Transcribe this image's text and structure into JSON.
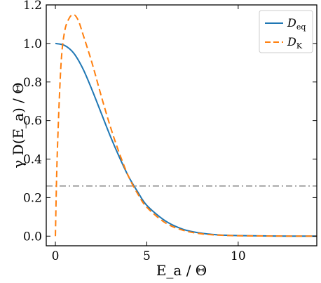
{
  "chart_data": {
    "type": "line",
    "xlabel": "E_a / Θ",
    "ylabel": "γ D(E_a) / Θ",
    "xlim": [
      -0.5,
      14.3
    ],
    "ylim": [
      -0.05,
      1.2
    ],
    "x_ticks": [
      0,
      5,
      10
    ],
    "y_ticks": [
      0.0,
      0.2,
      0.4,
      0.6,
      0.8,
      1.0,
      1.2
    ],
    "x_tick_labels": [
      "0",
      "5",
      "10"
    ],
    "y_tick_labels": [
      "0.0",
      "0.2",
      "0.4",
      "0.6",
      "0.8",
      "1.0",
      "1.2"
    ],
    "legend_position": "top-right",
    "reference_line": {
      "y": 0.26,
      "style": "dash-dot",
      "color": "#8c8c8c"
    },
    "series": [
      {
        "name": "D_eq",
        "label_main": "D",
        "label_sub": "eq",
        "color": "#1f77b4",
        "style": "solid",
        "x": [
          0,
          0.5,
          1,
          1.5,
          2,
          2.5,
          3,
          3.5,
          4,
          4.5,
          5,
          6,
          7,
          8,
          9,
          10,
          12,
          14.3
        ],
        "y": [
          1.0,
          0.99,
          0.95,
          0.87,
          0.76,
          0.64,
          0.52,
          0.41,
          0.31,
          0.23,
          0.16,
          0.08,
          0.035,
          0.015,
          0.006,
          0.003,
          0.0005,
          0.0
        ]
      },
      {
        "name": "D_K",
        "label_main": "D",
        "label_sub": "K",
        "color": "#ff7f0e",
        "style": "dashed",
        "x": [
          0,
          0.1,
          0.3,
          0.5,
          0.75,
          1.0,
          1.25,
          1.5,
          2,
          2.5,
          3,
          3.5,
          4,
          4.5,
          5,
          6,
          7,
          8,
          9,
          10,
          12,
          14.3
        ],
        "y": [
          0.0,
          0.42,
          0.88,
          1.06,
          1.13,
          1.15,
          1.12,
          1.05,
          0.9,
          0.73,
          0.57,
          0.43,
          0.31,
          0.22,
          0.15,
          0.07,
          0.03,
          0.012,
          0.005,
          0.002,
          0.0005,
          0.0
        ]
      }
    ]
  }
}
